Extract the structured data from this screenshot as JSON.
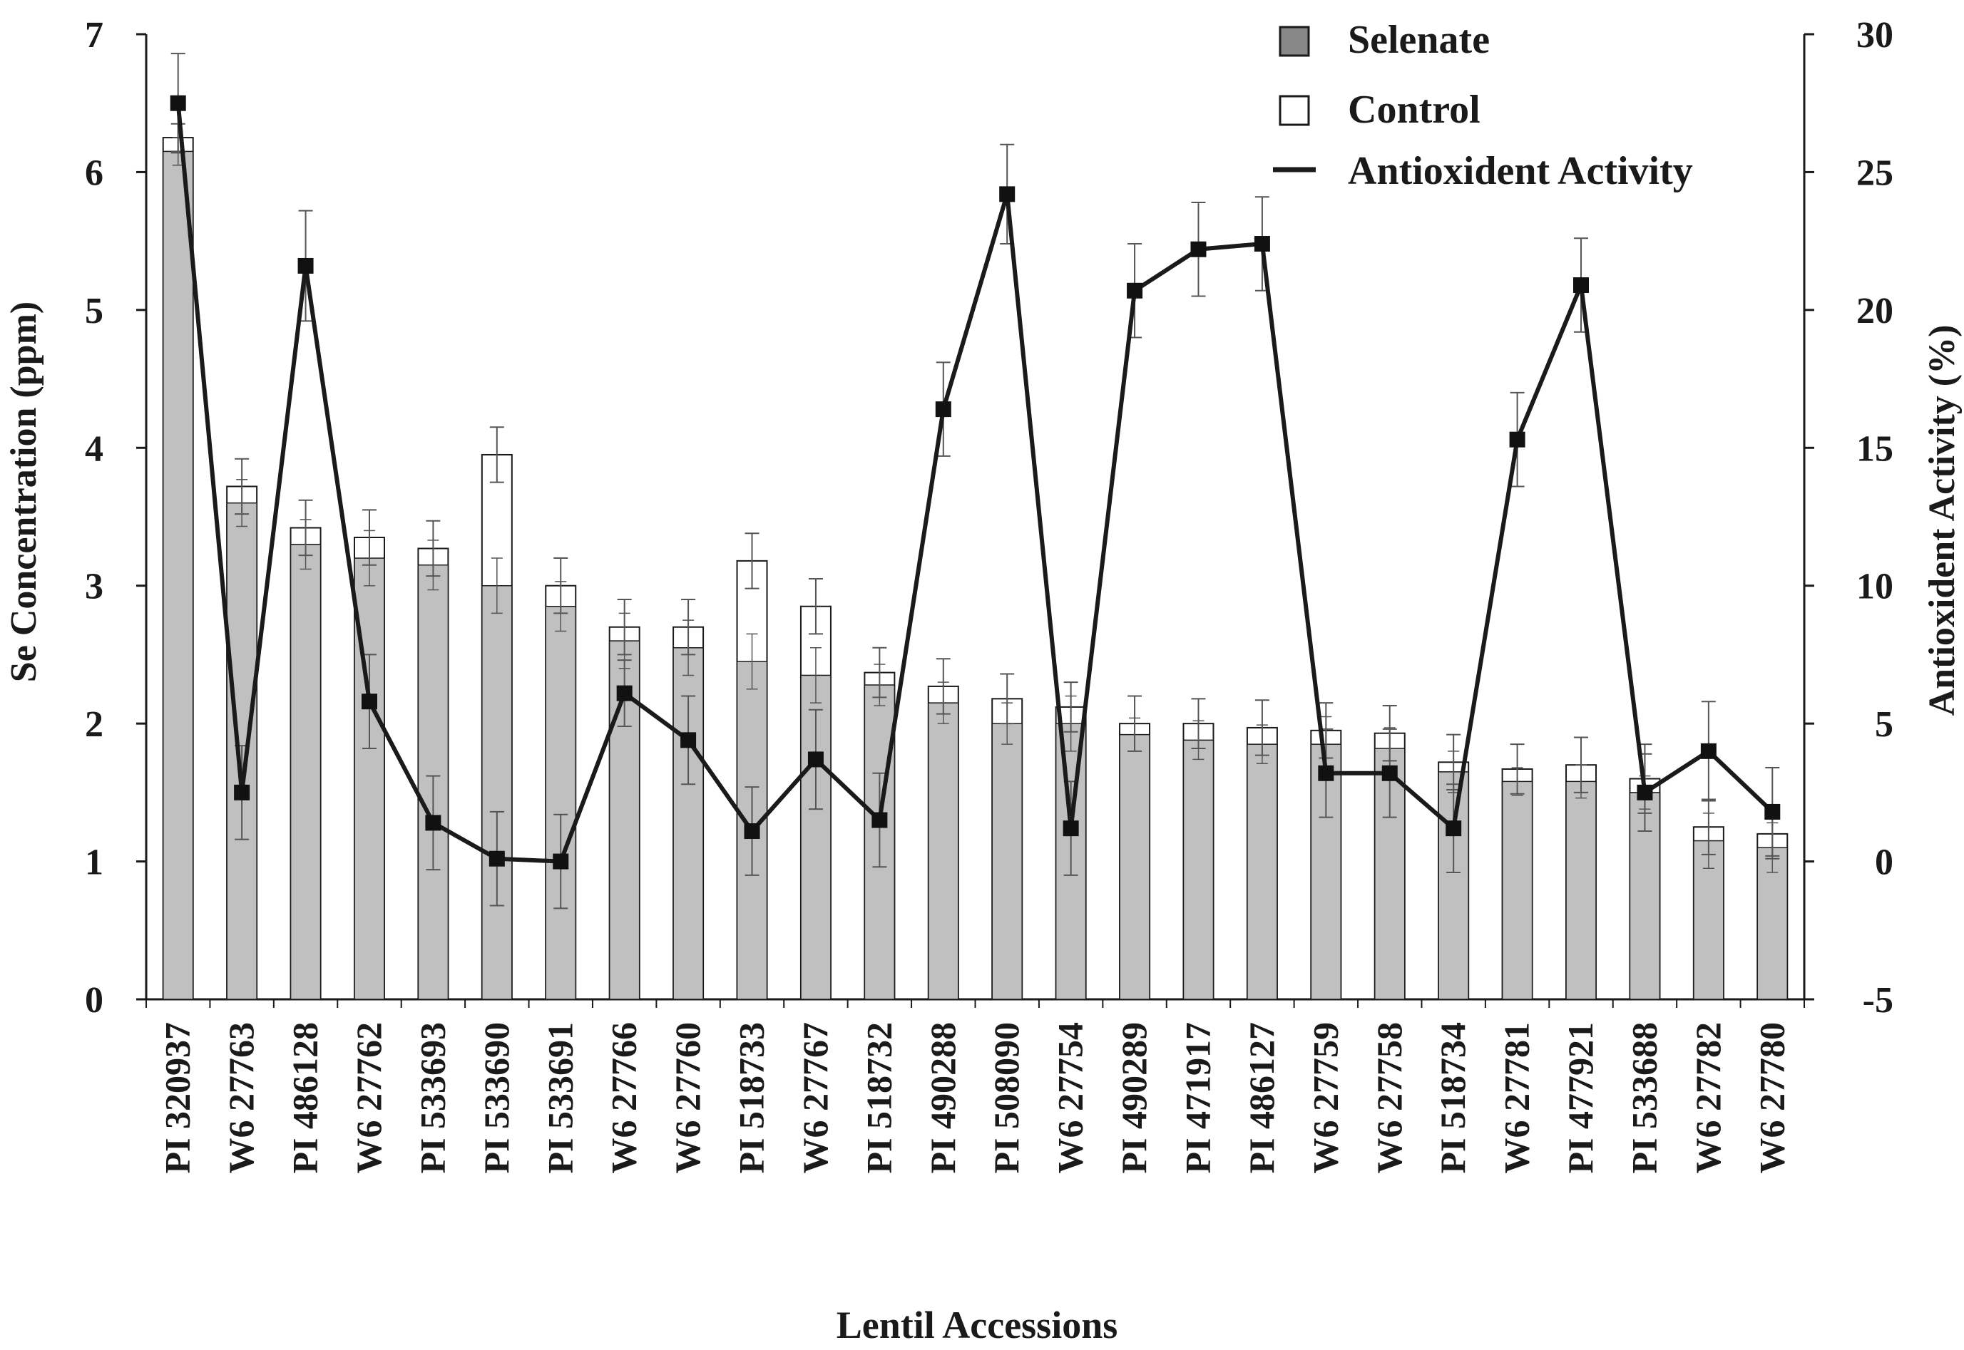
{
  "chart_data": {
    "type": "bar",
    "title": "",
    "xlabel": "Lentil Accessions",
    "ylabel": "Se Concentration (ppm)",
    "y2label": "Antioxident Activity (%)",
    "ylim": [
      0,
      7
    ],
    "y2lim": [
      -5,
      30
    ],
    "yticks": [
      "0",
      "1",
      "2",
      "3",
      "4",
      "5",
      "6",
      "7"
    ],
    "y2ticks": [
      "-5",
      "0",
      "5",
      "10",
      "15",
      "20",
      "25",
      "30"
    ],
    "categories": [
      "PI 320937",
      "W6 27763",
      "PI 486128",
      "W6 27762",
      "PI 533693",
      "PI 533690",
      "PI 533691",
      "W6 27766",
      "W6 27760",
      "PI 518733",
      "W6 27767",
      "PI 518732",
      "PI 490288",
      "PI 508090",
      "W6 27754",
      "PI 490289",
      "PI 471917",
      "PI 486127",
      "W6 27759",
      "W6 27758",
      "PI 518734",
      "W6 27781",
      "PI 477921",
      "PI 533688",
      "W6 27782",
      "W6 27780"
    ],
    "legend": {
      "position": "top-right",
      "entries": [
        "Selenate",
        "Control",
        "Antioxident Activity"
      ]
    },
    "colors": {
      "selenate": "#c0c0c0",
      "control": "#ffffff",
      "line": "#1a1a1a",
      "legend_selenate_swatch": "#888888"
    },
    "series": [
      {
        "name": "Selenate",
        "axis": "left",
        "values": [
          6.15,
          3.6,
          3.3,
          3.2,
          3.15,
          3.0,
          2.85,
          2.6,
          2.55,
          2.45,
          2.35,
          2.28,
          2.15,
          2.0,
          2.0,
          1.92,
          1.88,
          1.85,
          1.85,
          1.82,
          1.65,
          1.58,
          1.58,
          1.5,
          1.15,
          1.1
        ],
        "errors": [
          0.1,
          0.17,
          0.18,
          0.2,
          0.18,
          0.2,
          0.18,
          0.2,
          0.2,
          0.2,
          0.2,
          0.15,
          0.15,
          0.15,
          0.2,
          0.12,
          0.14,
          0.14,
          0.2,
          0.15,
          0.15,
          0.1,
          0.12,
          0.12,
          0.2,
          0.18
        ]
      },
      {
        "name": "Control",
        "axis": "left",
        "values": [
          6.25,
          3.72,
          3.42,
          3.35,
          3.27,
          3.95,
          3.0,
          2.7,
          2.7,
          3.18,
          2.85,
          2.37,
          2.27,
          2.18,
          2.12,
          2.0,
          2.0,
          1.97,
          1.95,
          1.93,
          1.72,
          1.67,
          1.7,
          1.6,
          1.25,
          1.2
        ],
        "errors": [
          0.1,
          0.2,
          0.2,
          0.2,
          0.2,
          0.2,
          0.2,
          0.2,
          0.2,
          0.2,
          0.2,
          0.18,
          0.2,
          0.18,
          0.18,
          0.2,
          0.18,
          0.2,
          0.2,
          0.2,
          0.2,
          0.18,
          0.2,
          0.25,
          0.2,
          0.18
        ]
      },
      {
        "name": "Antioxident Activity",
        "axis": "right",
        "type": "line",
        "values": [
          27.5,
          2.5,
          21.6,
          5.8,
          1.4,
          0.1,
          0.0,
          6.1,
          4.4,
          1.1,
          3.7,
          1.5,
          16.4,
          24.2,
          1.2,
          20.7,
          22.2,
          22.4,
          3.2,
          3.2,
          1.2,
          15.3,
          20.9,
          2.5,
          4.0,
          1.8
        ],
        "errors": [
          1.8,
          1.7,
          2.0,
          1.7,
          1.7,
          1.7,
          1.7,
          1.2,
          1.6,
          1.6,
          1.8,
          1.7,
          1.7,
          1.8,
          1.7,
          1.7,
          1.7,
          1.7,
          1.6,
          1.6,
          1.6,
          1.7,
          1.7,
          1.4,
          1.8,
          1.6
        ]
      }
    ]
  }
}
